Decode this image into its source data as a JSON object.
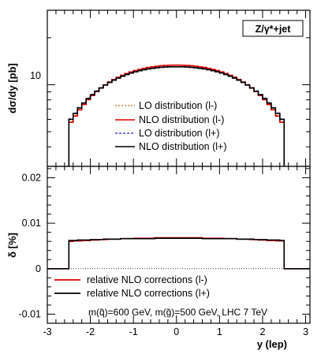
{
  "chart_data": [
    {
      "type": "line",
      "panel": "top",
      "ylabel": "dσ/dy [pb]",
      "y_scale": "log",
      "xlim": [
        -3,
        3.1
      ],
      "y_tick_labels": [
        "10"
      ],
      "grid": false,
      "legend_placement": "center",
      "process_label": "Z/γ*+jet",
      "x_bin_edges": [
        -2.5,
        -2.4,
        -2.3,
        -2.2,
        -2.1,
        -2.0,
        -1.9,
        -1.8,
        -1.7,
        -1.6,
        -1.5,
        -1.4,
        -1.3,
        -1.2,
        -1.1,
        -1.0,
        -0.9,
        -0.8,
        -0.7,
        -0.6,
        -0.5,
        -0.4,
        -0.3,
        -0.2,
        -0.1,
        0.0,
        0.1,
        0.2,
        0.3,
        0.4,
        0.5,
        0.6,
        0.7,
        0.8,
        0.9,
        1.0,
        1.1,
        1.2,
        1.3,
        1.4,
        1.5,
        1.6,
        1.7,
        1.8,
        1.9,
        2.0,
        2.1,
        2.2,
        2.3,
        2.4,
        2.5
      ],
      "series": [
        {
          "name": "LO distribution (l-)",
          "color": "#e06010",
          "style": "dotted",
          "values": [
            5.8,
            6.35,
            6.95,
            7.52,
            8.08,
            8.6,
            9.1,
            9.58,
            10.03,
            10.46,
            10.85,
            11.21,
            11.55,
            11.86,
            12.13,
            12.38,
            12.6,
            12.79,
            12.95,
            13.09,
            13.2,
            13.29,
            13.35,
            13.39,
            13.41,
            13.41,
            13.39,
            13.35,
            13.29,
            13.2,
            13.09,
            12.95,
            12.79,
            12.6,
            12.38,
            12.13,
            11.86,
            11.55,
            11.21,
            10.85,
            10.46,
            10.03,
            9.58,
            9.1,
            8.6,
            8.08,
            7.52,
            6.95,
            6.35,
            5.8
          ]
        },
        {
          "name": "NLO distribution (l-)",
          "color": "#dd0000",
          "style": "solid",
          "values": [
            5.75,
            6.3,
            6.9,
            7.47,
            8.02,
            8.54,
            9.04,
            9.52,
            9.97,
            10.4,
            10.79,
            11.15,
            11.49,
            11.79,
            12.06,
            12.31,
            12.53,
            12.72,
            12.88,
            13.02,
            13.13,
            13.22,
            13.28,
            13.32,
            13.34,
            13.34,
            13.32,
            13.28,
            13.22,
            13.13,
            13.02,
            12.88,
            12.72,
            12.53,
            12.31,
            12.06,
            11.79,
            11.49,
            11.15,
            10.79,
            10.4,
            9.97,
            9.52,
            9.04,
            8.54,
            8.02,
            7.47,
            6.9,
            6.3,
            5.75
          ]
        },
        {
          "name": "LO distribution (l+)",
          "color": "#2222cc",
          "style": "dashed",
          "values": [
            6.05,
            6.6,
            7.15,
            7.68,
            8.2,
            8.68,
            9.14,
            9.58,
            10.0,
            10.39,
            10.75,
            11.08,
            11.39,
            11.67,
            11.92,
            12.15,
            12.35,
            12.52,
            12.67,
            12.79,
            12.89,
            12.97,
            13.02,
            13.06,
            13.07,
            13.07,
            13.06,
            13.02,
            12.97,
            12.89,
            12.79,
            12.67,
            12.52,
            12.35,
            12.15,
            11.92,
            11.67,
            11.39,
            11.08,
            10.75,
            10.39,
            10.0,
            9.58,
            9.14,
            8.68,
            8.2,
            7.68,
            7.15,
            6.6,
            6.05
          ]
        },
        {
          "name": "NLO distribution (l+)",
          "color": "#000000",
          "style": "solid",
          "values": [
            6.0,
            6.55,
            7.1,
            7.63,
            8.15,
            8.63,
            9.09,
            9.53,
            9.95,
            10.34,
            10.7,
            11.03,
            11.34,
            11.62,
            11.87,
            12.1,
            12.3,
            12.47,
            12.62,
            12.74,
            12.84,
            12.92,
            12.97,
            13.01,
            13.02,
            13.02,
            13.01,
            12.97,
            12.92,
            12.84,
            12.74,
            12.62,
            12.47,
            12.3,
            12.1,
            11.87,
            11.62,
            11.34,
            11.03,
            10.7,
            10.34,
            9.95,
            9.53,
            9.09,
            8.63,
            8.15,
            7.63,
            7.1,
            6.55,
            6.0
          ]
        }
      ]
    },
    {
      "type": "line",
      "panel": "bottom",
      "xlabel": "y (lep)",
      "ylabel": "δ [%]",
      "xlim": [
        -3,
        3.1
      ],
      "ylim": [
        -0.012,
        0.0225
      ],
      "x_ticks": [
        -3,
        -2,
        -1,
        0,
        1,
        2,
        3
      ],
      "x_tick_labels": [
        "-3",
        "-2",
        "-1",
        "0",
        "1",
        "2",
        "3"
      ],
      "y_ticks": [
        -0.01,
        0,
        0.01,
        0.02
      ],
      "y_tick_labels": [
        "-0.01",
        "0",
        "0.01",
        "0.02"
      ],
      "grid": false,
      "legend_placement": "bottom-left",
      "note": "m(q̃)=600 GeV, m(g̃)=500 GeV, LHC 7 TeV",
      "x_bin_edges": [
        -2.5,
        -2.4,
        -2.3,
        -2.2,
        -2.1,
        -2.0,
        -1.9,
        -1.8,
        -1.7,
        -1.6,
        -1.5,
        -1.4,
        -1.3,
        -1.2,
        -1.1,
        -1.0,
        -0.9,
        -0.8,
        -0.7,
        -0.6,
        -0.5,
        -0.4,
        -0.3,
        -0.2,
        -0.1,
        0.0,
        0.1,
        0.2,
        0.3,
        0.4,
        0.5,
        0.6,
        0.7,
        0.8,
        0.9,
        1.0,
        1.1,
        1.2,
        1.3,
        1.4,
        1.5,
        1.6,
        1.7,
        1.8,
        1.9,
        2.0,
        2.1,
        2.2,
        2.3,
        2.4,
        2.5
      ],
      "series": [
        {
          "name": "relative NLO corrections (l-)",
          "color": "#dd0000",
          "style": "solid",
          "values": [
            0.006,
            0.0061,
            0.0061,
            0.0062,
            0.0062,
            0.0063,
            0.0063,
            0.0064,
            0.0064,
            0.0065,
            0.0065,
            0.0065,
            0.0066,
            0.0066,
            0.0066,
            0.0067,
            0.0067,
            0.0067,
            0.0067,
            0.0067,
            0.0068,
            0.0068,
            0.0068,
            0.0068,
            0.0068,
            0.0068,
            0.0068,
            0.0068,
            0.0068,
            0.0068,
            0.0068,
            0.0067,
            0.0067,
            0.0067,
            0.0067,
            0.0067,
            0.0066,
            0.0066,
            0.0066,
            0.0065,
            0.0065,
            0.0065,
            0.0064,
            0.0064,
            0.0063,
            0.0063,
            0.0062,
            0.0062,
            0.0061,
            0.0061
          ]
        },
        {
          "name": "relative NLO corrections (l+)",
          "color": "#000000",
          "style": "solid",
          "values": [
            0.0062,
            0.0062,
            0.0063,
            0.0063,
            0.0063,
            0.0064,
            0.0064,
            0.0064,
            0.0065,
            0.0065,
            0.0065,
            0.0065,
            0.0066,
            0.0066,
            0.0066,
            0.0066,
            0.0066,
            0.0066,
            0.0066,
            0.0066,
            0.0067,
            0.0067,
            0.0067,
            0.0067,
            0.0067,
            0.0067,
            0.0067,
            0.0067,
            0.0067,
            0.0067,
            0.0067,
            0.0066,
            0.0066,
            0.0066,
            0.0066,
            0.0066,
            0.0066,
            0.0066,
            0.0066,
            0.0065,
            0.0065,
            0.0065,
            0.0065,
            0.0064,
            0.0064,
            0.0064,
            0.0063,
            0.0063,
            0.0063,
            0.0062
          ]
        }
      ]
    }
  ]
}
